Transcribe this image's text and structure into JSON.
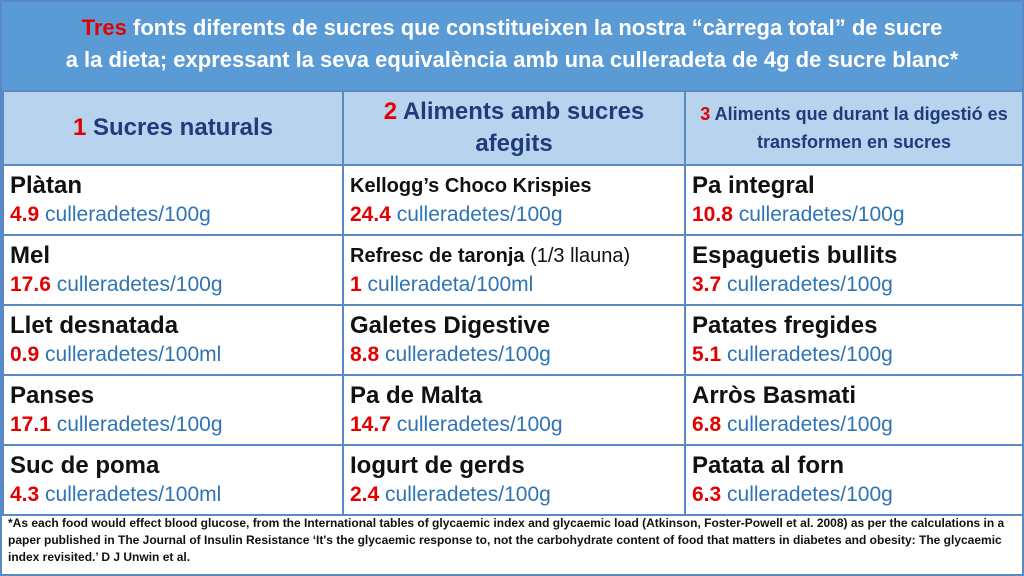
{
  "header": {
    "title_highlight": "Tres",
    "title_line1_rest": " fonts diferents de sucres que constitueixen la nostra “càrrega total” de sucre",
    "title_line2": "a la dieta; expressant la seva equivalència amb una culleradeta de 4g de sucre blanc*"
  },
  "columns": [
    {
      "num": "1",
      "label": " Sucres naturals"
    },
    {
      "num": "2",
      "label": " Aliments amb sucres afegits"
    },
    {
      "num": "3",
      "label": " Aliments que durant la digestió es transformen en sucres"
    }
  ],
  "rows": [
    [
      {
        "food": "Plàtan",
        "note": "",
        "value": "4.9",
        "unit": " culleradetes/100g"
      },
      {
        "food": "Kellogg’s Choco Krispies",
        "note": "",
        "value": "24.4",
        "unit": " culleradetes/100g"
      },
      {
        "food": "Pa integral",
        "note": "",
        "value": "10.8",
        "unit": " culleradetes/100g"
      }
    ],
    [
      {
        "food": "Mel",
        "note": "",
        "value": "17.6",
        "unit": " culleradetes/100g"
      },
      {
        "food": "Refresc de taronja",
        "note": " (1/3 llauna)",
        "value": "1",
        "unit": " culleradeta/100ml"
      },
      {
        "food": "Espaguetis bullits",
        "note": "",
        "value": "3.7",
        "unit": " culleradetes/100g"
      }
    ],
    [
      {
        "food": "Llet desnatada",
        "note": "",
        "value": "0.9",
        "unit": " culleradetes/100ml"
      },
      {
        "food": "Galetes Digestive",
        "note": "",
        "value": "8.8",
        "unit": " culleradetes/100g"
      },
      {
        "food": "Patates fregides",
        "note": "",
        "value": "5.1",
        "unit": " culleradetes/100g"
      }
    ],
    [
      {
        "food": "Panses",
        "note": "",
        "value": "17.1",
        "unit": " culleradetes/100g"
      },
      {
        "food": "Pa de Malta",
        "note": "",
        "value": "14.7",
        "unit": " culleradetes/100g"
      },
      {
        "food": "Arròs Basmati",
        "note": "",
        "value": "6.8",
        "unit": " culleradetes/100g"
      }
    ],
    [
      {
        "food": "Suc de poma",
        "note": "",
        "value": "4.3",
        "unit": " culleradetes/100ml"
      },
      {
        "food": "Iogurt de gerds",
        "note": "",
        "value": "2.4",
        "unit": " culleradetes/100g"
      },
      {
        "food": "Patata al forn",
        "note": "",
        "value": "6.3",
        "unit": " culleradetes/100g"
      }
    ]
  ],
  "footnote": "*As each food would effect blood glucose, from the International tables of glycaemic index and glycaemic load (Atkinson, Foster-Powell et al. 2008) as per the calculations in a paper published in The Journal of Insulin Resistance ‘It's the glycaemic response to, not the carbohydrate content of food that matters in diabetes and obesity: The glycaemic index revisited.’ D J Unwin et al.",
  "colors": {
    "header_bg": "#5b9bd5",
    "column_head_bg": "#b8d3ee",
    "accent_red": "#e30000",
    "unit_blue": "#2e74b5",
    "border": "#5a8ac6"
  }
}
